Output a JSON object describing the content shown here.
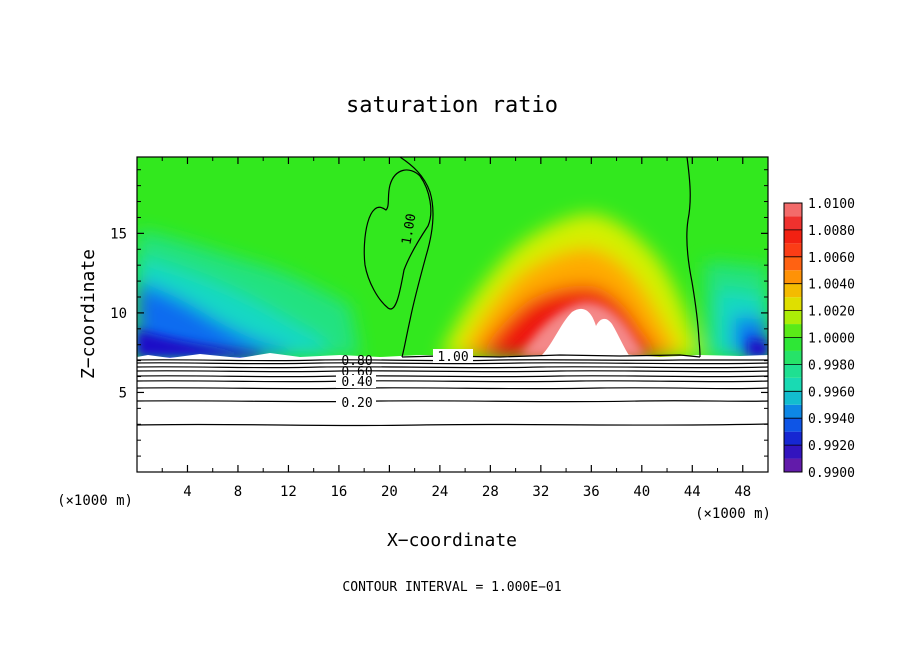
{
  "chart_data": {
    "type": "heatmap",
    "title": "saturation ratio",
    "xlabel": "X−coordinate",
    "ylabel": "Z−coordinate",
    "x_unit": "(×1000 m)",
    "y_unit": "(×1000 m)",
    "xlim": [
      0,
      50
    ],
    "ylim": [
      0,
      19.8
    ],
    "xticks": [
      "4",
      "8",
      "12",
      "16",
      "20",
      "24",
      "28",
      "32",
      "36",
      "40",
      "44",
      "48"
    ],
    "yticks": [
      "5",
      "10",
      "15"
    ],
    "colorbar": {
      "levels": [
        "1.0100",
        "1.0080",
        "1.0060",
        "1.0040",
        "1.0020",
        "1.0000",
        "0.9980",
        "0.9960",
        "0.9940",
        "0.9920",
        "0.9900"
      ],
      "min": 0.99,
      "max": 1.01
    },
    "contour_labels": [
      "1.00",
      "1.00",
      "0.80",
      "0.60",
      "0.40",
      "0.20"
    ],
    "contour_interval_text": "CONTOUR INTERVAL = 1.000E−01",
    "colors": {
      "0.9900": "#7a1fa0",
      "0.9920": "#1a10c8",
      "0.9940": "#0a6cf0",
      "0.9960": "#16d8c4",
      "0.9980": "#22e280",
      "1.0000": "#32e81e",
      "1.0020": "#d4f000",
      "1.0040": "#ffaa00",
      "1.0060": "#ff4a18",
      "1.0080": "#ee1410",
      "1.0100": "#f48888"
    }
  }
}
